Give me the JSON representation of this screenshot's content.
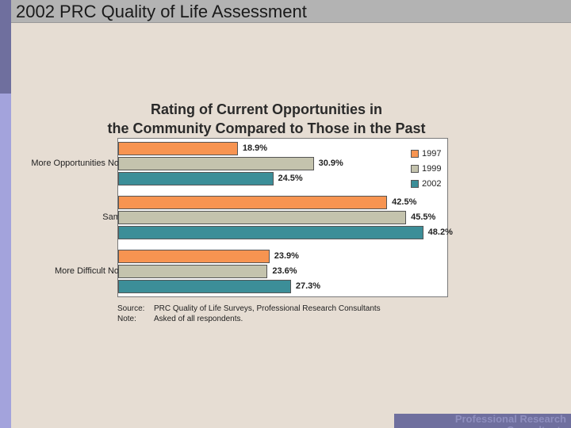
{
  "slide": {
    "header_title": "2002 PRC Quality of Life Assessment",
    "footer_text": "Professional Research Consultants"
  },
  "colors": {
    "1997": "#f79451",
    "1999": "#c4c3ad",
    "2002": "#3c8e98"
  },
  "chart_data": {
    "type": "bar",
    "orientation": "horizontal",
    "title": "Rating of Current Opportunities in the Community Compared to Those in the Past",
    "title_lines": [
      "Rating of Current Opportunities in",
      "the Community Compared to Those in the Past"
    ],
    "categories": [
      "More Opportunities Now",
      "Same",
      "More Difficult Now"
    ],
    "series": [
      {
        "name": "1997",
        "values": [
          18.9,
          42.5,
          23.9
        ],
        "labels": [
          "18.9%",
          "42.5%",
          "23.9%"
        ]
      },
      {
        "name": "1999",
        "values": [
          30.9,
          45.5,
          23.6
        ],
        "labels": [
          "30.9%",
          "45.5%",
          "23.6%"
        ]
      },
      {
        "name": "2002",
        "values": [
          24.5,
          48.2,
          27.3
        ],
        "labels": [
          "24.5%",
          "48.2%",
          "27.3%"
        ]
      }
    ],
    "xlim": [
      0,
      52
    ],
    "grid": false,
    "legend_position": "top-right",
    "source_label": "Source:",
    "source_text": "PRC Quality of Life Surveys, Professional Research Consultants",
    "note_label": "Note:",
    "note_text": "Asked of all respondents."
  }
}
